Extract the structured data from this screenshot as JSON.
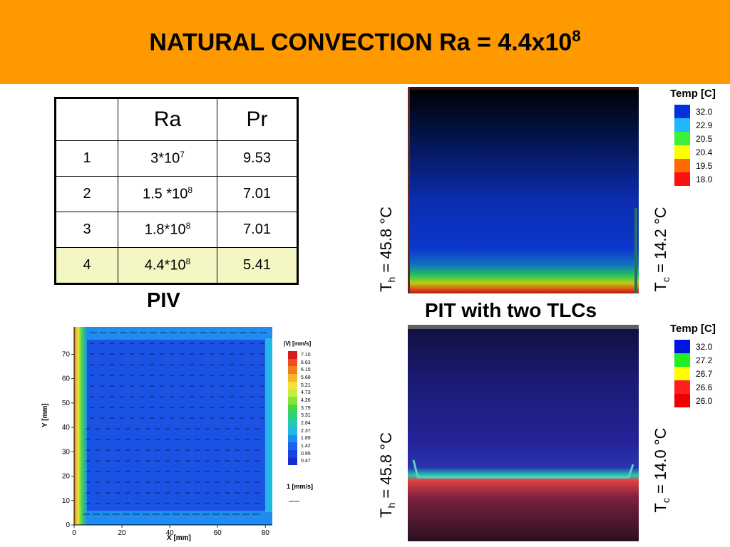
{
  "title": {
    "main": "NATURAL CONVECTION  Ra = 4.4x10",
    "exp": "8"
  },
  "table": {
    "headers": [
      "",
      "Ra",
      "Pr"
    ],
    "rows": [
      {
        "n": "1",
        "ra_base": "3*10",
        "ra_exp": "7",
        "pr": "9.53"
      },
      {
        "n": "2",
        "ra_base": "1.5 *10",
        "ra_exp": "8",
        "pr": "7.01"
      },
      {
        "n": "3",
        "ra_base": "1.8*10",
        "ra_exp": "8",
        "pr": "7.01"
      },
      {
        "n": "4",
        "ra_base": "4.4*10",
        "ra_exp": "8",
        "pr": "5.41"
      }
    ]
  },
  "labels": {
    "piv": "PIV",
    "pit": "PIT with two TLCs"
  },
  "temps": {
    "top_hot": {
      "sym": "T",
      "sub": "h",
      "rest": " = 45.8 °C"
    },
    "top_cold": {
      "sym": "T",
      "sub": "c",
      "rest": " = 14.2 °C"
    },
    "bot_hot": {
      "sym": "T",
      "sub": "h",
      "rest": " = 45.8 °C"
    },
    "bot_cold": {
      "sym": "T",
      "sub": "c",
      "rest": " = 14.0 °C"
    }
  },
  "legend_top": {
    "title": "Temp [C]",
    "items": [
      {
        "v": "32.0",
        "c": "#0030e0"
      },
      {
        "v": "22.9",
        "c": "#1fb8ff"
      },
      {
        "v": "20.5",
        "c": "#3cf03c"
      },
      {
        "v": "20.4",
        "c": "#ffff00"
      },
      {
        "v": "19.5",
        "c": "#ff6a00"
      },
      {
        "v": "18.0",
        "c": "#ff1010"
      }
    ]
  },
  "legend_bottom": {
    "title": "Temp [C]",
    "items": [
      {
        "v": "32.0",
        "c": "#0016e0"
      },
      {
        "v": "27.2",
        "c": "#22ee22"
      },
      {
        "v": "26.7",
        "c": "#ffff00"
      },
      {
        "v": "26.6",
        "c": "#ff2020"
      },
      {
        "v": "26.0",
        "c": "#ee0000"
      }
    ]
  },
  "piv": {
    "legend_title": "|V| [mm/s]",
    "legend": [
      {
        "v": "7.10",
        "c": "#d41e1e"
      },
      {
        "v": "6.63",
        "c": "#e8501c"
      },
      {
        "v": "6.15",
        "c": "#f07f1f"
      },
      {
        "v": "5.68",
        "c": "#f7b52a"
      },
      {
        "v": "5.21",
        "c": "#f2e23a"
      },
      {
        "v": "4.73",
        "c": "#c6ee3a"
      },
      {
        "v": "4.26",
        "c": "#86e23c"
      },
      {
        "v": "3.79",
        "c": "#42d84a"
      },
      {
        "v": "3.31",
        "c": "#2fd07c"
      },
      {
        "v": "2.84",
        "c": "#25c8b0"
      },
      {
        "v": "2.37",
        "c": "#22b8e4"
      },
      {
        "v": "1.89",
        "c": "#1e8cf0"
      },
      {
        "v": "1.42",
        "c": "#1a64ea"
      },
      {
        "v": "0.95",
        "c": "#1644e0"
      },
      {
        "v": "0.47",
        "c": "#1230cc"
      }
    ],
    "x_ticks": [
      "0",
      "20",
      "40",
      "60",
      "80"
    ],
    "y_ticks": [
      "0",
      "10",
      "20",
      "30",
      "40",
      "50",
      "60",
      "70"
    ],
    "x_label": "X [mm]",
    "y_label": "Y [mm]",
    "ref_label": "1 [mm/s]"
  }
}
